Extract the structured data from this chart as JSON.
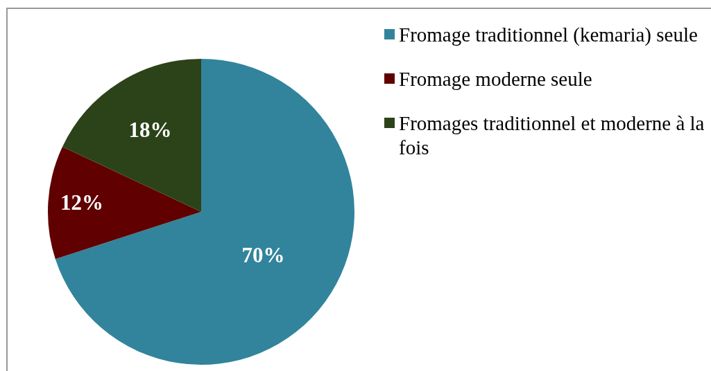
{
  "chart_data": {
    "type": "pie",
    "categories": [
      "Fromage traditionnel (kemaria) seule",
      "Fromage moderne seule",
      "Fromages traditionnel et moderne à la fois"
    ],
    "values": [
      70,
      12,
      18
    ],
    "colors": [
      "#31849b",
      "#600000",
      "#2c4319"
    ],
    "value_labels": [
      "70%",
      "12%",
      "18%"
    ],
    "legend": "top right"
  }
}
